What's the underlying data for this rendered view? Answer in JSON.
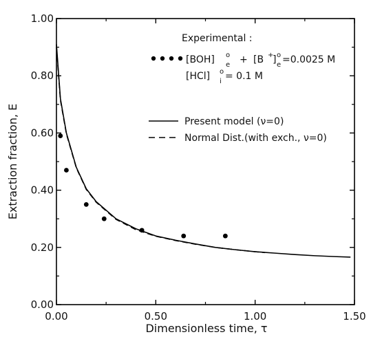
{
  "chart_data": {
    "type": "line",
    "xlabel": "Dimensionless time, τ",
    "ylabel": "Extraction fraction, E",
    "xlim": [
      0,
      1.5
    ],
    "ylim": [
      0,
      1.0
    ],
    "x_ticks": [
      "0.00",
      "0.50",
      "1.00",
      "1.50"
    ],
    "y_ticks": [
      "0.00",
      "0.20",
      "0.40",
      "0.60",
      "0.80",
      "1.00"
    ],
    "series": [
      {
        "name": "Present model (ν=0)",
        "style": "solid",
        "color": "#000000",
        "x": [
          0.0,
          0.02,
          0.05,
          0.1,
          0.15,
          0.2,
          0.3,
          0.4,
          0.5,
          0.6,
          0.7,
          0.8,
          0.9,
          1.0,
          1.1,
          1.2,
          1.3,
          1.4,
          1.48
        ],
        "y": [
          0.91,
          0.72,
          0.6,
          0.48,
          0.405,
          0.36,
          0.3,
          0.265,
          0.24,
          0.225,
          0.212,
          0.2,
          0.192,
          0.185,
          0.18,
          0.175,
          0.171,
          0.168,
          0.166
        ]
      },
      {
        "name": "Normal Dist.(with exch., ν=0)",
        "style": "dashed",
        "color": "#000000",
        "x": [
          0.0,
          0.02,
          0.05,
          0.1,
          0.15,
          0.2,
          0.3,
          0.4,
          0.5,
          0.6,
          0.7,
          0.8,
          0.9,
          1.0,
          1.05
        ],
        "y": [
          0.9,
          0.715,
          0.597,
          0.478,
          0.403,
          0.358,
          0.298,
          0.262,
          0.239,
          0.224,
          0.211,
          0.2,
          0.192,
          0.185,
          0.182
        ]
      },
      {
        "name": "Experimental",
        "style": "points",
        "color": "#000000",
        "x": [
          0.02,
          0.05,
          0.15,
          0.24,
          0.43,
          0.64,
          0.85
        ],
        "y": [
          0.59,
          0.47,
          0.35,
          0.3,
          0.26,
          0.24,
          0.24
        ]
      }
    ],
    "annotations": {
      "experimental_title": "Experimental :",
      "condition_1": {
        "part1_main": "[BOH]",
        "part1_sup": "o",
        "part1_sub": "e",
        "plus": "+",
        "part2_main": "[B",
        "part2_plus": "+",
        "part2_close": "]",
        "part2_sup": "o",
        "part2_sub": "e",
        "value": "=0.0025 M"
      },
      "condition_2": {
        "main": "[HCl]",
        "sup": "o",
        "sub": "i",
        "value": "= 0.1 M"
      }
    },
    "legend_position": "right",
    "grid": false
  }
}
